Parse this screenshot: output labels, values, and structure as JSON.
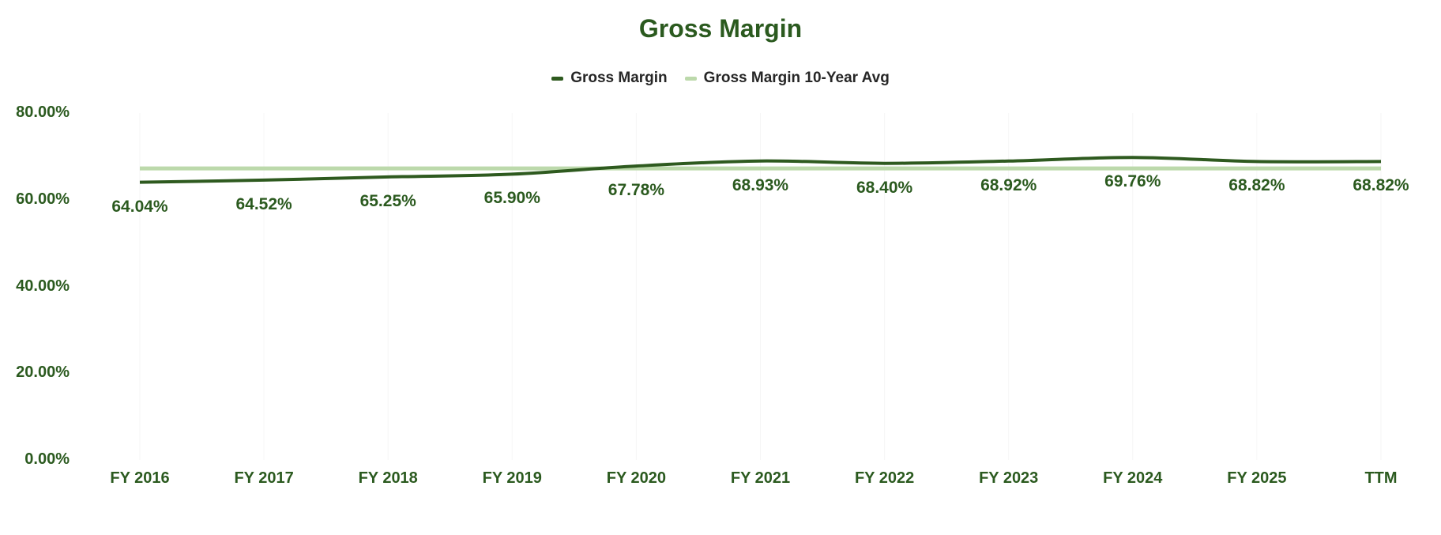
{
  "page": {
    "background": "#ffffff"
  },
  "chart_data": {
    "type": "line",
    "title": "Gross Margin",
    "categories": [
      "FY 2016",
      "FY 2017",
      "FY 2018",
      "FY 2019",
      "FY 2020",
      "FY 2021",
      "FY 2022",
      "FY 2023",
      "FY 2024",
      "FY 2025",
      "TTM"
    ],
    "series": [
      {
        "name": "Gross Margin",
        "color": "#2e5a1f",
        "values": [
          64.04,
          64.52,
          65.25,
          65.9,
          67.78,
          68.93,
          68.4,
          68.92,
          69.76,
          68.82,
          68.82
        ],
        "point_labels": [
          "64.04%",
          "64.52%",
          "65.25%",
          "65.90%",
          "67.78%",
          "68.93%",
          "68.40%",
          "68.92%",
          "69.76%",
          "68.82%",
          "68.82%"
        ]
      },
      {
        "name": "Gross Margin 10-Year Avg",
        "color": "#bcd9ab",
        "constant_value": 67.23
      }
    ],
    "legend": [
      {
        "label": "Gross Margin",
        "color": "#2e5a1f"
      },
      {
        "label": "Gross Margin 10-Year Avg",
        "color": "#bcd9ab"
      }
    ],
    "legend_position": "top",
    "grid": "none",
    "xlabel": "",
    "ylabel": "",
    "y_axis": {
      "min": 0,
      "max": 80,
      "tick_values": [
        80,
        60,
        40,
        20,
        0
      ],
      "tick_labels": [
        "80.00%",
        "60.00%",
        "40.00%",
        "20.00%",
        "0.00%"
      ]
    },
    "colors": {
      "title_text": "#2b5a1f",
      "axis_text": "#2b5a1f",
      "data_label_text": "#2b5a1f",
      "legend_text": "#262626",
      "gridline": "#f6f6f6"
    }
  }
}
